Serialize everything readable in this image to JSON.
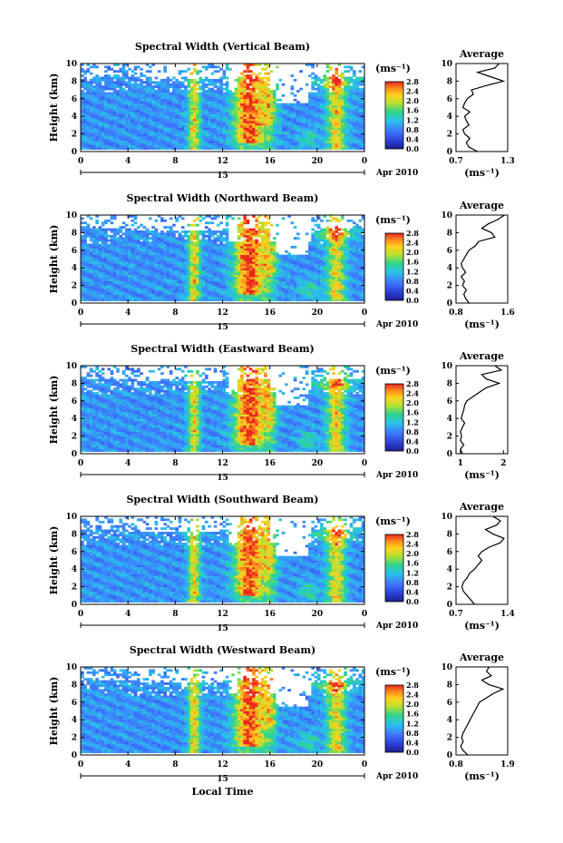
{
  "chart_data": [
    {
      "type": "heatmap",
      "title": "Spectral Width (Vertical Beam)",
      "ylabel": "Height (km)",
      "xlabel": "",
      "x_ticks": [
        "0",
        "4",
        "8",
        "12",
        "16",
        "20",
        "0"
      ],
      "y_ticks": [
        "0",
        "2",
        "4",
        "6",
        "8",
        "10"
      ],
      "xlim": [
        0,
        24
      ],
      "ylim": [
        0,
        10
      ],
      "day_label": "15",
      "date_label": "Apr 2010",
      "colorbar": {
        "unit": "(ms⁻¹)",
        "ticks": [
          "0.0",
          "0.4",
          "0.8",
          "1.2",
          "1.6",
          "2.0",
          "2.4",
          "2.8"
        ],
        "min": 0,
        "max": 2.8
      },
      "average_profile": {
        "title": "Average",
        "xlabel": "(ms⁻¹)",
        "x_ticks": [
          "0.7",
          "1.3"
        ],
        "xlim": [
          0.7,
          1.3
        ],
        "height": [
          0.0,
          0.5,
          1.0,
          1.5,
          2.0,
          2.5,
          3.0,
          3.5,
          4.0,
          4.5,
          5.0,
          5.5,
          6.0,
          6.5,
          7.0,
          7.5,
          8.0,
          8.5,
          9.0,
          9.5,
          10.0
        ],
        "value": [
          0.95,
          0.85,
          0.82,
          0.86,
          0.8,
          0.78,
          0.85,
          0.82,
          0.8,
          0.86,
          0.78,
          0.8,
          0.83,
          0.9,
          0.88,
          1.05,
          1.25,
          1.1,
          0.95,
          1.15,
          1.2
        ]
      }
    },
    {
      "type": "heatmap",
      "title": "Spectral Width (Northward Beam)",
      "ylabel": "Height (km)",
      "xlabel": "",
      "x_ticks": [
        "0",
        "4",
        "8",
        "12",
        "16",
        "20",
        "0"
      ],
      "y_ticks": [
        "0",
        "2",
        "4",
        "6",
        "8",
        "10"
      ],
      "xlim": [
        0,
        24
      ],
      "ylim": [
        0,
        10
      ],
      "day_label": "15",
      "date_label": "Apr 2010",
      "colorbar": {
        "unit": "(ms⁻¹)",
        "ticks": [
          "0.0",
          "0.4",
          "0.8",
          "1.2",
          "1.6",
          "2.0",
          "2.4",
          "2.8"
        ],
        "min": 0,
        "max": 2.8
      },
      "average_profile": {
        "title": "Average",
        "xlabel": "(ms⁻¹)",
        "x_ticks": [
          "0.8",
          "1.6"
        ],
        "xlim": [
          0.8,
          1.6
        ],
        "height": [
          0.0,
          0.5,
          1.0,
          1.5,
          2.0,
          2.5,
          3.0,
          3.5,
          4.0,
          4.5,
          5.0,
          5.5,
          6.0,
          6.5,
          7.0,
          7.5,
          8.0,
          8.5,
          9.0,
          9.5,
          10.0
        ],
        "value": [
          1.0,
          0.95,
          0.92,
          0.96,
          0.9,
          0.93,
          0.88,
          0.95,
          0.9,
          0.88,
          0.92,
          0.96,
          1.0,
          1.1,
          1.15,
          1.4,
          1.35,
          1.2,
          1.3,
          1.45,
          1.55
        ]
      }
    },
    {
      "type": "heatmap",
      "title": "Spectral Width (Eastward Beam)",
      "ylabel": "Height (km)",
      "xlabel": "",
      "x_ticks": [
        "0",
        "4",
        "8",
        "12",
        "16",
        "20",
        "0"
      ],
      "y_ticks": [
        "0",
        "2",
        "4",
        "6",
        "8",
        "10"
      ],
      "xlim": [
        0,
        24
      ],
      "ylim": [
        0,
        10
      ],
      "day_label": "15",
      "date_label": "Apr 2010",
      "colorbar": {
        "unit": "(ms⁻¹)",
        "ticks": [
          "0.0",
          "0.4",
          "0.8",
          "1.2",
          "1.6",
          "2.0",
          "2.4",
          "2.8"
        ],
        "min": 0,
        "max": 2.8
      },
      "average_profile": {
        "title": "Average",
        "xlabel": "(ms⁻¹)",
        "x_ticks": [
          "1",
          "2"
        ],
        "xlim": [
          0.9,
          2.1
        ],
        "height": [
          0.0,
          0.5,
          1.0,
          1.5,
          2.0,
          2.5,
          3.0,
          3.5,
          4.0,
          4.5,
          5.0,
          5.5,
          6.0,
          6.5,
          7.0,
          7.5,
          8.0,
          8.5,
          9.0,
          9.5,
          10.0
        ],
        "value": [
          1.05,
          1.0,
          1.08,
          1.0,
          1.03,
          1.0,
          1.05,
          1.1,
          1.02,
          1.05,
          1.08,
          1.1,
          1.15,
          1.3,
          1.45,
          1.6,
          1.9,
          1.6,
          1.5,
          1.95,
          1.8
        ]
      }
    },
    {
      "type": "heatmap",
      "title": "Spectral Width (Southward Beam)",
      "ylabel": "Height (km)",
      "xlabel": "",
      "x_ticks": [
        "0",
        "4",
        "8",
        "12",
        "16",
        "20",
        "0"
      ],
      "y_ticks": [
        "0",
        "2",
        "4",
        "6",
        "8",
        "10"
      ],
      "xlim": [
        0,
        24
      ],
      "ylim": [
        0,
        10
      ],
      "day_label": "15",
      "date_label": "Apr 2010",
      "colorbar": {
        "unit": "(ms⁻¹)",
        "ticks": [
          "0.0",
          "0.4",
          "0.8",
          "1.2",
          "1.6",
          "2.0",
          "2.4",
          "2.8"
        ],
        "min": 0,
        "max": 2.8
      },
      "average_profile": {
        "title": "Average",
        "xlabel": "(ms⁻¹)",
        "x_ticks": [
          "0.7",
          "1.4"
        ],
        "xlim": [
          0.7,
          1.4
        ],
        "height": [
          0.0,
          0.5,
          1.0,
          1.5,
          2.0,
          2.5,
          3.0,
          3.5,
          4.0,
          4.5,
          5.0,
          5.5,
          6.0,
          6.5,
          7.0,
          7.5,
          8.0,
          8.5,
          9.0,
          9.5,
          10.0
        ],
        "value": [
          0.95,
          0.9,
          0.85,
          0.8,
          0.78,
          0.8,
          0.85,
          0.88,
          0.95,
          1.0,
          1.05,
          1.0,
          1.05,
          1.15,
          1.3,
          1.35,
          1.2,
          1.1,
          1.25,
          1.3,
          1.2
        ]
      }
    },
    {
      "type": "heatmap",
      "title": "Spectral Width (Westward Beam)",
      "ylabel": "Height (km)",
      "xlabel": "Local Time",
      "x_ticks": [
        "0",
        "4",
        "8",
        "12",
        "16",
        "20",
        "0"
      ],
      "y_ticks": [
        "0",
        "2",
        "4",
        "6",
        "8",
        "10"
      ],
      "xlim": [
        0,
        24
      ],
      "ylim": [
        0,
        10
      ],
      "day_label": "15",
      "date_label": "Apr 2010",
      "colorbar": {
        "unit": "(ms⁻¹)",
        "ticks": [
          "0.0",
          "0.4",
          "0.8",
          "1.2",
          "1.6",
          "2.0",
          "2.4",
          "2.8"
        ],
        "min": 0,
        "max": 2.8
      },
      "average_profile": {
        "title": "Average",
        "xlabel": "(ms⁻¹)",
        "x_ticks": [
          "0.8",
          "1.9"
        ],
        "xlim": [
          0.8,
          1.9
        ],
        "height": [
          0.0,
          0.5,
          1.0,
          1.5,
          2.0,
          2.5,
          3.0,
          3.5,
          4.0,
          4.5,
          5.0,
          5.5,
          6.0,
          6.5,
          7.0,
          7.5,
          8.0,
          8.5,
          9.0,
          9.5,
          10.0
        ],
        "value": [
          1.05,
          0.95,
          0.9,
          0.95,
          0.92,
          0.95,
          1.0,
          1.05,
          1.1,
          1.15,
          1.2,
          1.25,
          1.3,
          1.45,
          1.6,
          1.8,
          1.5,
          1.35,
          1.55,
          1.45,
          1.5
        ]
      }
    }
  ]
}
